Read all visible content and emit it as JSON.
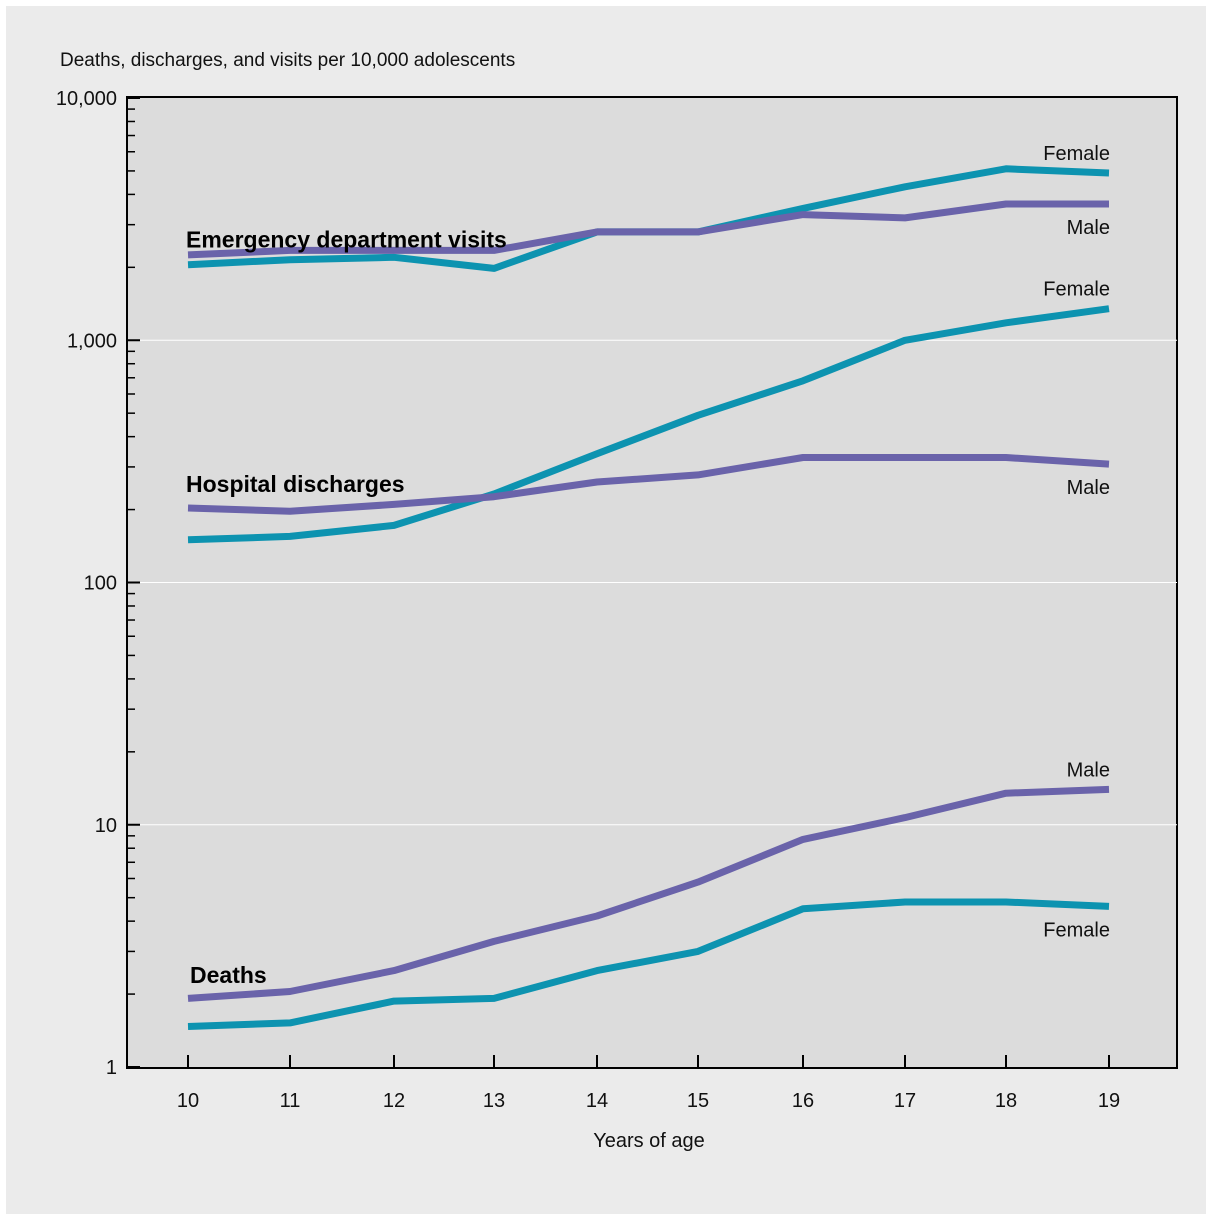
{
  "chart_data": {
    "type": "line",
    "ylabel": "Deaths, discharges, and visits per 10,000 adolescents",
    "xlabel": "Years of age",
    "x": [
      10,
      11,
      12,
      13,
      14,
      15,
      16,
      17,
      18,
      19
    ],
    "y_scale": "log",
    "ylim": [
      1,
      10000
    ],
    "y_ticks": [
      "1",
      "10",
      "100",
      "1,000",
      "10,000"
    ],
    "grid": "horizontal at decades",
    "colors": {
      "male": "#6a63aa",
      "female": "#0d93b0"
    },
    "groups": [
      {
        "label": "Emergency department visits",
        "series": [
          {
            "name": "Female",
            "sex": "female",
            "values": [
              2050,
              2150,
              2200,
              1980,
              2800,
              2800,
              3500,
              4300,
              5100,
              4900
            ]
          },
          {
            "name": "Male",
            "sex": "male",
            "values": [
              2250,
              2350,
              2350,
              2350,
              2800,
              2800,
              3300,
              3200,
              3650,
              3650
            ]
          }
        ]
      },
      {
        "label": "Hospital discharges",
        "series": [
          {
            "name": "Female",
            "sex": "female",
            "values": [
              150,
              155,
              172,
              232,
              340,
              490,
              680,
              1000,
              1180,
              1350
            ]
          },
          {
            "name": "Male",
            "sex": "male",
            "values": [
              203,
              197,
              210,
              226,
              260,
              278,
              328,
              328,
              328,
              308
            ]
          }
        ]
      },
      {
        "label": "Deaths",
        "series": [
          {
            "name": "Male",
            "sex": "male",
            "values": [
              1.92,
              2.05,
              2.5,
              3.3,
              4.2,
              5.8,
              8.7,
              10.7,
              13.5,
              14.0
            ]
          },
          {
            "name": "Female",
            "sex": "female",
            "values": [
              1.47,
              1.52,
              1.87,
              1.92,
              2.5,
              3.0,
              4.5,
              4.8,
              4.8,
              4.6
            ]
          }
        ]
      }
    ]
  }
}
